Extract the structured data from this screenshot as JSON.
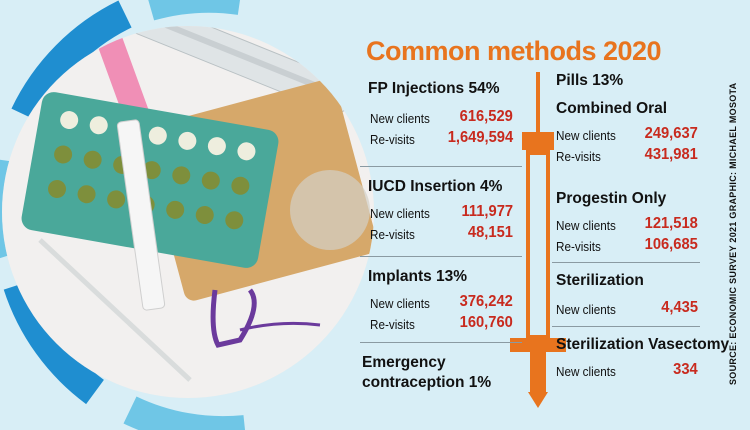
{
  "title": "Common methods 2020",
  "sections": {
    "fp_injections": {
      "heading": "FP Injections 54%",
      "rows": [
        {
          "label": "New clients",
          "value": "616,529"
        },
        {
          "label": "Re-visits",
          "value": "1,649,594"
        }
      ]
    },
    "iucd": {
      "heading": "IUCD Insertion 4%",
      "rows": [
        {
          "label": "New clients",
          "value": "111,977"
        },
        {
          "label": "Re-visits",
          "value": "48,151"
        }
      ]
    },
    "implants": {
      "heading": "Implants 13%",
      "rows": [
        {
          "label": "New clients",
          "value": "376,242"
        },
        {
          "label": "Re-visits",
          "value": "160,760"
        }
      ]
    },
    "emergency": {
      "heading_line1": "Emergency",
      "heading_line2": "contraception  1%"
    },
    "pills": {
      "heading": "Pills  13%"
    },
    "combined_oral": {
      "heading": "Combined Oral",
      "rows": [
        {
          "label": "New clients",
          "value": "249,637"
        },
        {
          "label": "Re-visits",
          "value": "431,981"
        }
      ]
    },
    "progestin": {
      "heading": "Progestin Only",
      "rows": [
        {
          "label": "New clients",
          "value": "121,518"
        },
        {
          "label": "Re-visits",
          "value": "106,685"
        }
      ]
    },
    "sterilization": {
      "heading": "Sterilization",
      "rows": [
        {
          "label": "New clients",
          "value": "4,435"
        }
      ]
    },
    "vasectomy": {
      "heading": "Sterilization Vasectomy",
      "rows": [
        {
          "label": "New clients",
          "value": "334"
        }
      ]
    }
  },
  "source": "SOURCE: ECONOMIC SURVEY 2021  GRAPHIC: MICHAEL MOSOTA",
  "colors": {
    "background": "#d8eef6",
    "title": "#e8741e",
    "values": "#c82a1e",
    "ring": "#1f8ed0",
    "syringe": "#e8741e"
  }
}
